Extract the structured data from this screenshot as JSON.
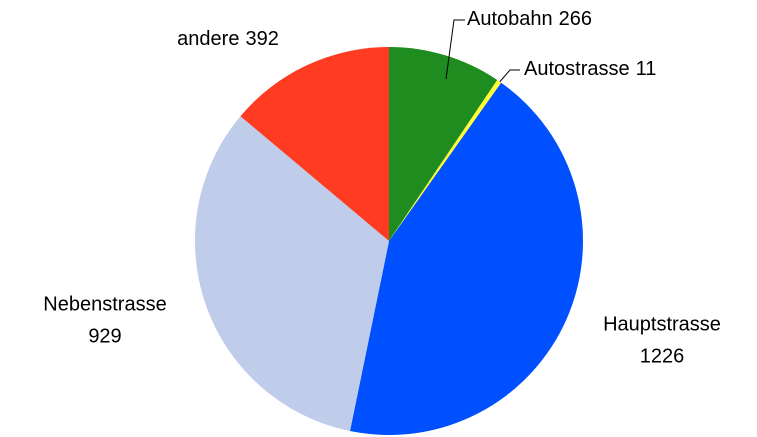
{
  "chart_data": {
    "type": "pie",
    "categories": [
      "Autobahn",
      "Autostrasse",
      "Hauptstrasse",
      "Nebenstrasse",
      "andere"
    ],
    "values": [
      266,
      11,
      1226,
      929,
      392
    ],
    "colors": [
      "#1e8c1e",
      "#ffff33",
      "#0050ff",
      "#bfcdea",
      "#ff3b22"
    ]
  }
}
